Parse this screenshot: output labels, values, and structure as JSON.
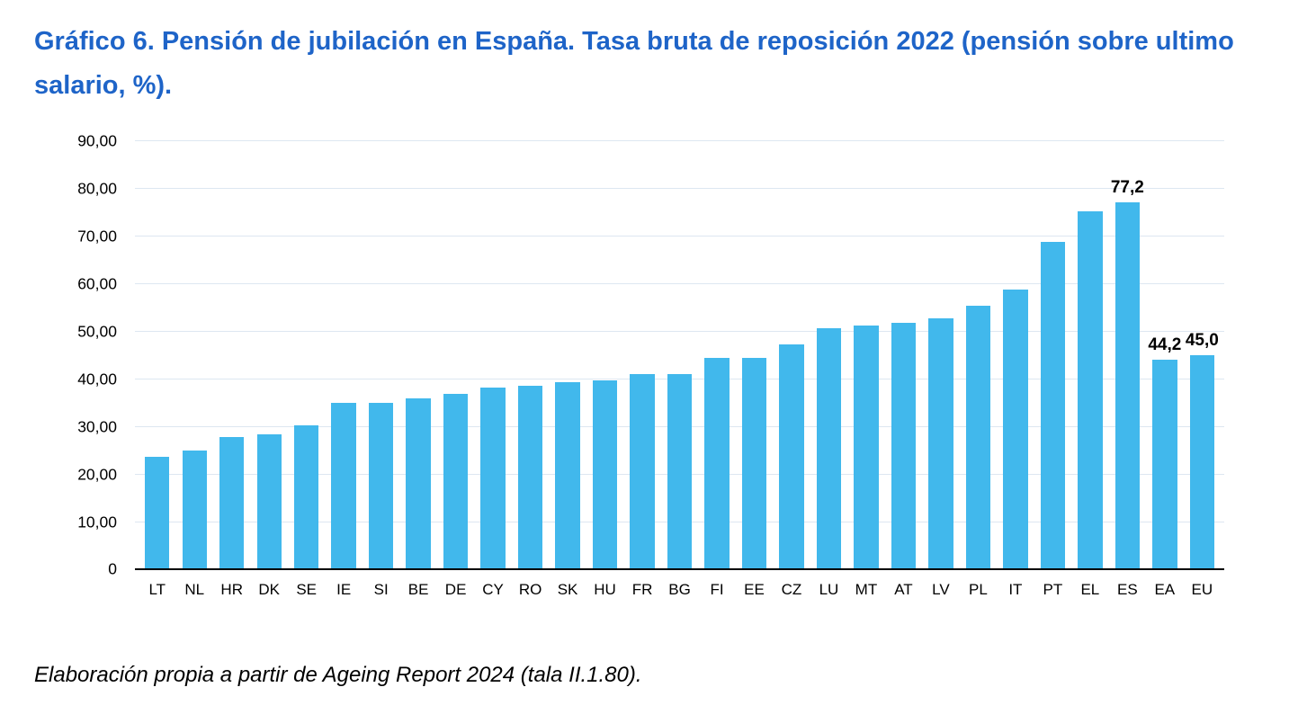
{
  "colors": {
    "title": "#1e64c8",
    "bar": "#41b8ec",
    "gridline": "#dde7f1",
    "axis": "#000000"
  },
  "chart_data": {
    "type": "bar",
    "title": "Gráfico 6. Pensión de jubilación en España. Tasa bruta de reposición 2022 (pensión sobre ultimo salario, %).",
    "source": "Elaboración propia a partir de Ageing Report 2024 (tala II.1.80).",
    "xlabel": "",
    "ylabel": "",
    "ylim": [
      0,
      90
    ],
    "grid": true,
    "legend": "none",
    "categories": [
      "LT",
      "NL",
      "HR",
      "DK",
      "SE",
      "IE",
      "SI",
      "BE",
      "DE",
      "CY",
      "RO",
      "SK",
      "HU",
      "FR",
      "BG",
      "FI",
      "EE",
      "CZ",
      "LU",
      "MT",
      "AT",
      "LV",
      "PL",
      "IT",
      "PT",
      "EL",
      "ES",
      "EA",
      "EU"
    ],
    "values": [
      23.8,
      25.0,
      27.8,
      28.4,
      30.3,
      35.0,
      35.0,
      36.0,
      37.0,
      38.2,
      38.6,
      39.5,
      39.7,
      41.1,
      41.1,
      44.5,
      44.5,
      47.3,
      50.7,
      51.4,
      51.9,
      52.9,
      55.5,
      58.9,
      68.9,
      75.3,
      77.2,
      44.2,
      45.0
    ],
    "value_labels": {
      "ES": "77,2",
      "EA": "44,2",
      "EU": "45,0"
    },
    "yticks": [
      {
        "value": 0,
        "label": "0"
      },
      {
        "value": 10,
        "label": "10,00"
      },
      {
        "value": 20,
        "label": "20,00"
      },
      {
        "value": 30,
        "label": "30,00"
      },
      {
        "value": 40,
        "label": "40,00"
      },
      {
        "value": 50,
        "label": "50,00"
      },
      {
        "value": 60,
        "label": "60,00"
      },
      {
        "value": 70,
        "label": "70,00"
      },
      {
        "value": 80,
        "label": "80,00"
      },
      {
        "value": 90,
        "label": "90,00"
      }
    ]
  }
}
